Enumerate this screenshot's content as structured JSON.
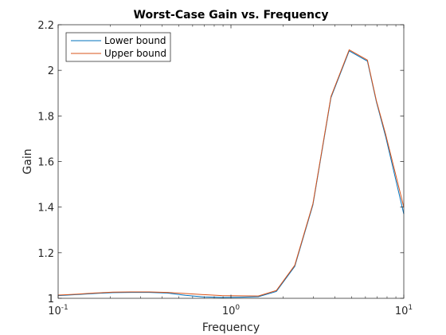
{
  "chart_data": {
    "type": "line",
    "title": "Worst-Case Gain vs. Frequency",
    "xlabel": "Frequency",
    "ylabel": "Gain",
    "xscale": "log",
    "xlim": [
      0.1,
      10
    ],
    "ylim": [
      1,
      2.2
    ],
    "x_ticks": [
      {
        "value": 0.1,
        "base": "10",
        "exp": "-1"
      },
      {
        "value": 1,
        "base": "10",
        "exp": "0"
      },
      {
        "value": 10,
        "base": "10",
        "exp": "1"
      }
    ],
    "y_ticks": [
      {
        "value": 1,
        "label": "1"
      },
      {
        "value": 1.2,
        "label": "1.2"
      },
      {
        "value": 1.4,
        "label": "1.4"
      },
      {
        "value": 1.6,
        "label": "1.6"
      },
      {
        "value": 1.8,
        "label": "1.8"
      },
      {
        "value": 2,
        "label": "2"
      },
      {
        "value": 2.2,
        "label": "2.2"
      }
    ],
    "grid": false,
    "box": true,
    "legend_position": "top-left",
    "series": [
      {
        "name": "Lower bound",
        "color": "#0072BD",
        "x": [
          0.1,
          0.127,
          0.162,
          0.207,
          0.264,
          0.336,
          0.428,
          0.546,
          0.695,
          0.886,
          1.13,
          1.44,
          1.83,
          2.34,
          2.98,
          3.79,
          4.83,
          6.16,
          6.95,
          7.85,
          10
        ],
        "y": [
          1.012,
          1.016,
          1.021,
          1.025,
          1.026,
          1.026,
          1.023,
          1.013,
          1.006,
          1.004,
          1.005,
          1.007,
          1.03,
          1.14,
          1.41,
          1.88,
          2.085,
          2.04,
          1.86,
          1.71,
          1.37
        ]
      },
      {
        "name": "Upper bound",
        "color": "#D95319",
        "x": [
          0.1,
          0.127,
          0.162,
          0.207,
          0.264,
          0.336,
          0.428,
          0.546,
          0.695,
          0.886,
          1.13,
          1.44,
          1.83,
          2.34,
          2.98,
          3.79,
          4.83,
          6.16,
          6.95,
          7.85,
          10
        ],
        "y": [
          1.014,
          1.018,
          1.023,
          1.027,
          1.028,
          1.028,
          1.026,
          1.021,
          1.016,
          1.012,
          1.011,
          1.01,
          1.034,
          1.145,
          1.415,
          1.885,
          2.09,
          2.045,
          1.865,
          1.72,
          1.4
        ]
      }
    ]
  }
}
